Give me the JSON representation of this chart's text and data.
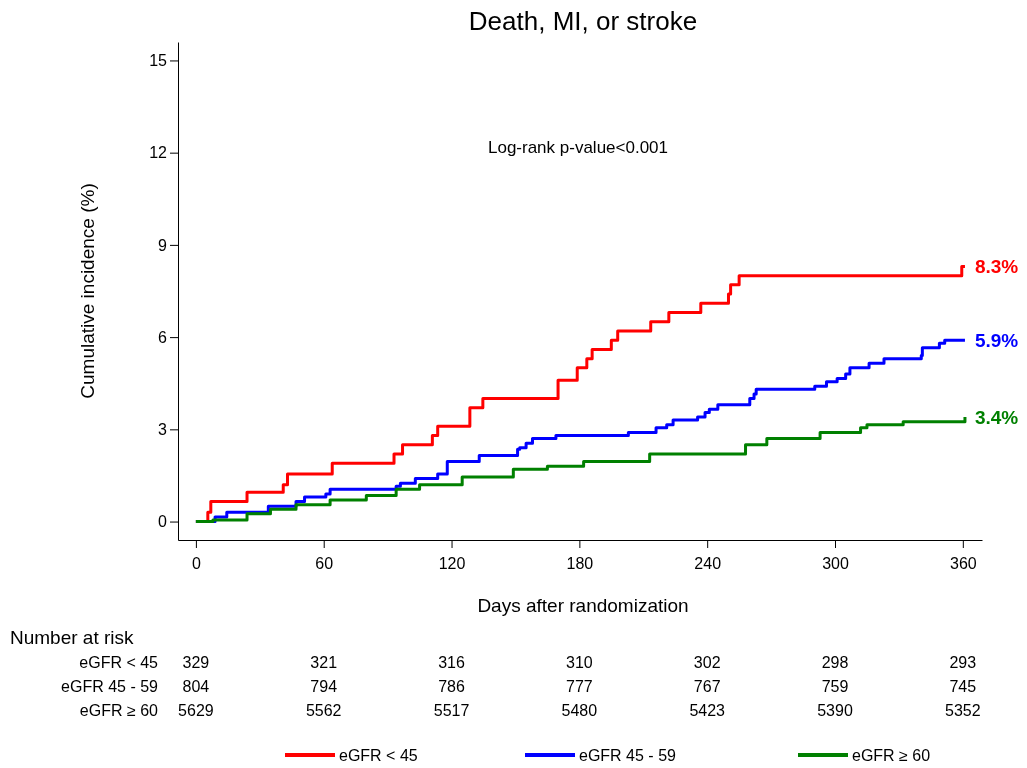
{
  "chart_data": {
    "type": "step",
    "title": "Death, MI, or stroke",
    "xlabel": "Days after randomization",
    "ylabel": "Cumulative incidence (%)",
    "xlim": [
      -8.4,
      369
    ],
    "ylim": [
      -0.6,
      15.6
    ],
    "xticks": [
      0,
      60,
      120,
      180,
      240,
      300,
      360
    ],
    "yticks": [
      0,
      3,
      6,
      9,
      12,
      15
    ],
    "grid": false,
    "legend": "bottom",
    "line_style": "solid",
    "marker": "none",
    "series": [
      {
        "name": "eGFR < 45",
        "color": "#ff0000",
        "x": [
          0,
          5.6,
          7,
          24,
          41,
          43,
          64,
          93,
          97,
          111,
          113.5,
          128.6,
          134.7,
          170,
          179,
          183.5,
          186,
          195,
          198,
          213.5,
          222,
          237,
          250,
          251,
          255,
          359.5,
          361
        ],
        "values": [
          0,
          0.3,
          0.65,
          0.95,
          1.2,
          1.55,
          1.9,
          2.2,
          2.5,
          2.8,
          3.1,
          3.7,
          4.0,
          4.6,
          5.0,
          5.3,
          5.6,
          5.9,
          6.2,
          6.5,
          6.8,
          7.1,
          7.4,
          7.7,
          8.0,
          8.3,
          8.3
        ]
      },
      {
        "name": "eGFR 45 - 59",
        "color": "#0000ff",
        "x": [
          0,
          9,
          14.5,
          34,
          47,
          51,
          61,
          63,
          94,
          96,
          103,
          113.5,
          118,
          133,
          151,
          152,
          155,
          158,
          169,
          203,
          216,
          221,
          224,
          235.5,
          239,
          241,
          245,
          260,
          262,
          263,
          290.5,
          296,
          301,
          305,
          307,
          316,
          323,
          340.5,
          341,
          349,
          351.5,
          361
        ],
        "values": [
          0,
          0.15,
          0.3,
          0.5,
          0.65,
          0.8,
          0.9,
          1.05,
          1.15,
          1.25,
          1.4,
          1.55,
          1.95,
          2.15,
          2.35,
          2.4,
          2.55,
          2.7,
          2.8,
          2.9,
          3.05,
          3.15,
          3.3,
          3.4,
          3.55,
          3.65,
          3.8,
          4.0,
          4.15,
          4.3,
          4.4,
          4.55,
          4.65,
          4.8,
          5.0,
          5.15,
          5.3,
          5.4,
          5.65,
          5.8,
          5.9,
          5.9
        ]
      },
      {
        "name": "eGFR ≥ 60",
        "color": "#008000",
        "x": [
          0,
          8,
          24,
          35,
          47,
          63,
          80,
          94,
          105,
          125,
          149,
          165,
          182,
          213,
          258,
          268,
          283,
          293,
          312,
          315,
          332,
          361
        ],
        "values": [
          0,
          0.05,
          0.25,
          0.4,
          0.55,
          0.7,
          0.85,
          1.05,
          1.2,
          1.45,
          1.7,
          1.8,
          1.95,
          2.2,
          2.5,
          2.7,
          2.7,
          2.9,
          3.05,
          3.15,
          3.25,
          3.4
        ]
      }
    ],
    "annotations": [
      "Log-rank p-value<0.001",
      "8.3%",
      "5.9%",
      "3.4%",
      "Number at risk",
      "eGFR < 45",
      "329",
      "321",
      "316",
      "310",
      "302",
      "298",
      "293",
      "eGFR 45 - 59",
      "804",
      "794",
      "786",
      "777",
      "767",
      "759",
      "745",
      "eGFR ≥ 60",
      "5629",
      "5562",
      "5517",
      "5480",
      "5423",
      "5390",
      "5352"
    ]
  }
}
